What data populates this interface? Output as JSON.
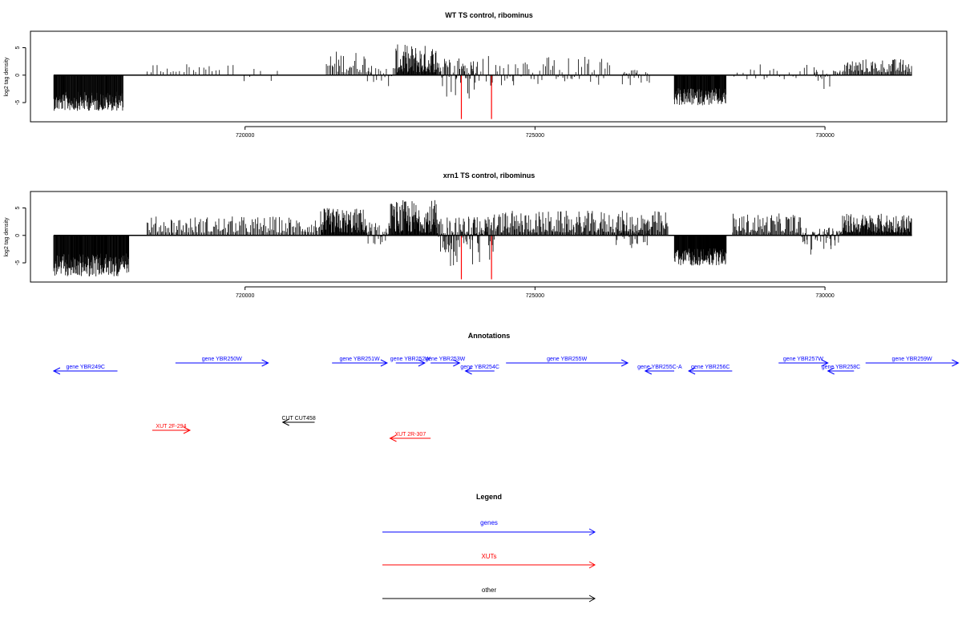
{
  "chart_data": [
    {
      "type": "bar",
      "title": "WT TS control, ribominus",
      "ylabel": "log2 tag density",
      "xlim": [
        716300,
        732100
      ],
      "ylim": [
        -8.5,
        8
      ],
      "xticks": [
        720000,
        725000,
        730000
      ],
      "xtick_labels": [
        "720000",
        "725000",
        "730000"
      ],
      "yticks": [
        -5,
        0,
        5
      ],
      "ytick_labels": [
        "-5",
        "0",
        "5"
      ],
      "grid": false,
      "series": [
        {
          "color": "#000000",
          "segments": [
            {
              "x": [
                716700,
                717900
              ],
              "y": [
                -6.5,
                -1.5
              ],
              "density": 1.0
            },
            {
              "x": [
                718300,
                719600
              ],
              "y": [
                0.5,
                2.2
              ],
              "density": 0.12
            },
            {
              "x": [
                719700,
                720600
              ],
              "y": [
                -1.5,
                2.0
              ],
              "density": 0.08
            },
            {
              "x": [
                721400,
                722200
              ],
              "y": [
                0.5,
                4.5
              ],
              "density": 0.3
            },
            {
              "x": [
                722100,
                722600
              ],
              "y": [
                -2.5,
                1.5
              ],
              "density": 0.25
            },
            {
              "x": [
                722600,
                723300
              ],
              "y": [
                0.5,
                5.6
              ],
              "density": 0.8
            },
            {
              "x": [
                723300,
                724000
              ],
              "y": [
                -4.5,
                3.5
              ],
              "density": 0.55
            },
            {
              "x": [
                724000,
                726300
              ],
              "y": [
                -2.0,
                3.5
              ],
              "density": 0.22
            },
            {
              "x": [
                726500,
                727000
              ],
              "y": [
                -2.0,
                1.0
              ],
              "density": 0.35
            },
            {
              "x": [
                727400,
                728300
              ],
              "y": [
                -5.5,
                -1.0
              ],
              "density": 0.95
            },
            {
              "x": [
                728400,
                729900
              ],
              "y": [
                -1.0,
                2.5
              ],
              "density": 0.12
            },
            {
              "x": [
                729800,
                730300
              ],
              "y": [
                -3.0,
                1.0
              ],
              "density": 0.35
            },
            {
              "x": [
                730300,
                731500
              ],
              "y": [
                0.5,
                3.0
              ],
              "density": 0.45
            }
          ]
        },
        {
          "color": "#ff0000",
          "spikes": [
            {
              "x": 723730,
              "y": -8.0
            },
            {
              "x": 724250,
              "y": -8.0
            }
          ]
        }
      ]
    },
    {
      "type": "bar",
      "title": "xrn1 TS control, ribominus",
      "ylabel": "log2 tag density",
      "xlim": [
        716300,
        732100
      ],
      "ylim": [
        -8.5,
        8
      ],
      "xticks": [
        720000,
        725000,
        730000
      ],
      "xtick_labels": [
        "720000",
        "725000",
        "730000"
      ],
      "yticks": [
        -5,
        0,
        5
      ],
      "ytick_labels": [
        "-5",
        "0",
        "5"
      ],
      "grid": false,
      "series": [
        {
          "color": "#000000",
          "segments": [
            {
              "x": [
                716700,
                718000
              ],
              "y": [
                -7.5,
                -1.5
              ],
              "density": 1.0
            },
            {
              "x": [
                718300,
                721300
              ],
              "y": [
                0.5,
                3.5
              ],
              "density": 0.35
            },
            {
              "x": [
                721300,
                722100
              ],
              "y": [
                0.5,
                5.0
              ],
              "density": 0.85
            },
            {
              "x": [
                722100,
                722500
              ],
              "y": [
                -2.5,
                2.5
              ],
              "density": 0.5
            },
            {
              "x": [
                722500,
                723300
              ],
              "y": [
                0.5,
                6.5
              ],
              "density": 0.9
            },
            {
              "x": [
                723300,
                724300
              ],
              "y": [
                -6.0,
                3.5
              ],
              "density": 0.8
            },
            {
              "x": [
                724300,
                727300
              ],
              "y": [
                0.5,
                4.5
              ],
              "density": 0.5
            },
            {
              "x": [
                726400,
                727000
              ],
              "y": [
                -2.5,
                1.0
              ],
              "density": 0.5
            },
            {
              "x": [
                727400,
                728300
              ],
              "y": [
                -5.5,
                -1.0
              ],
              "density": 1.0
            },
            {
              "x": [
                728400,
                729600
              ],
              "y": [
                0.5,
                4.0
              ],
              "density": 0.45
            },
            {
              "x": [
                729600,
                730300
              ],
              "y": [
                -3.5,
                1.5
              ],
              "density": 0.6
            },
            {
              "x": [
                730300,
                731500
              ],
              "y": [
                0.5,
                4.0
              ],
              "density": 0.85
            }
          ]
        },
        {
          "color": "#ff0000",
          "spikes": [
            {
              "x": 723730,
              "y": -8.0
            },
            {
              "x": 724250,
              "y": -8.0
            }
          ]
        }
      ]
    }
  ],
  "annotations": {
    "title": "Annotations",
    "features": [
      {
        "label": "gene YBR249C",
        "start": 716700,
        "end": 717800,
        "strand": "-",
        "row": 2,
        "type": "genes"
      },
      {
        "label": "gene YBR250W",
        "start": 718800,
        "end": 720400,
        "strand": "+",
        "row": 1,
        "type": "genes"
      },
      {
        "label": "gene YBR251W",
        "start": 721500,
        "end": 722450,
        "strand": "+",
        "row": 1,
        "type": "genes"
      },
      {
        "label": "gene YBR252W",
        "start": 722600,
        "end": 723100,
        "strand": "+",
        "row": 1,
        "type": "genes"
      },
      {
        "label": "gene YBR253W",
        "start": 723200,
        "end": 723700,
        "strand": "+",
        "row": 1,
        "type": "genes"
      },
      {
        "label": "gene YBR254C",
        "start": 723800,
        "end": 724300,
        "strand": "-",
        "row": 2,
        "type": "genes"
      },
      {
        "label": "gene YBR255W",
        "start": 724500,
        "end": 726600,
        "strand": "+",
        "row": 1,
        "type": "genes"
      },
      {
        "label": "gene YBR255C-A",
        "start": 726900,
        "end": 727400,
        "strand": "-",
        "row": 2,
        "type": "genes"
      },
      {
        "label": "gene YBR256C",
        "start": 727650,
        "end": 728400,
        "strand": "-",
        "row": 2,
        "type": "genes"
      },
      {
        "label": "gene YBR257W",
        "start": 729200,
        "end": 730050,
        "strand": "+",
        "row": 1,
        "type": "genes"
      },
      {
        "label": "gene YBR258C",
        "start": 730050,
        "end": 730500,
        "strand": "-",
        "row": 2,
        "type": "genes"
      },
      {
        "label": "gene YBR259W",
        "start": 730700,
        "end": 732300,
        "strand": "+",
        "row": 1,
        "type": "genes"
      },
      {
        "label": "CUT CUT458",
        "start": 720650,
        "end": 721200,
        "strand": "-",
        "row": 4,
        "type": "other"
      },
      {
        "label": "XUT 2F-294",
        "start": 718400,
        "end": 719050,
        "strand": "+",
        "row": 5,
        "type": "XUTs"
      },
      {
        "label": "XUT 2R-307",
        "start": 722500,
        "end": 723200,
        "strand": "-",
        "row": 6,
        "type": "XUTs"
      }
    ]
  },
  "legend": {
    "title": "Legend",
    "items": [
      {
        "label": "genes",
        "color": "#0000ff"
      },
      {
        "label": "XUTs",
        "color": "#ff0000"
      },
      {
        "label": "other",
        "color": "#000000"
      }
    ]
  },
  "colors": {
    "genes": "#0000ff",
    "XUTs": "#ff0000",
    "other": "#000000"
  }
}
